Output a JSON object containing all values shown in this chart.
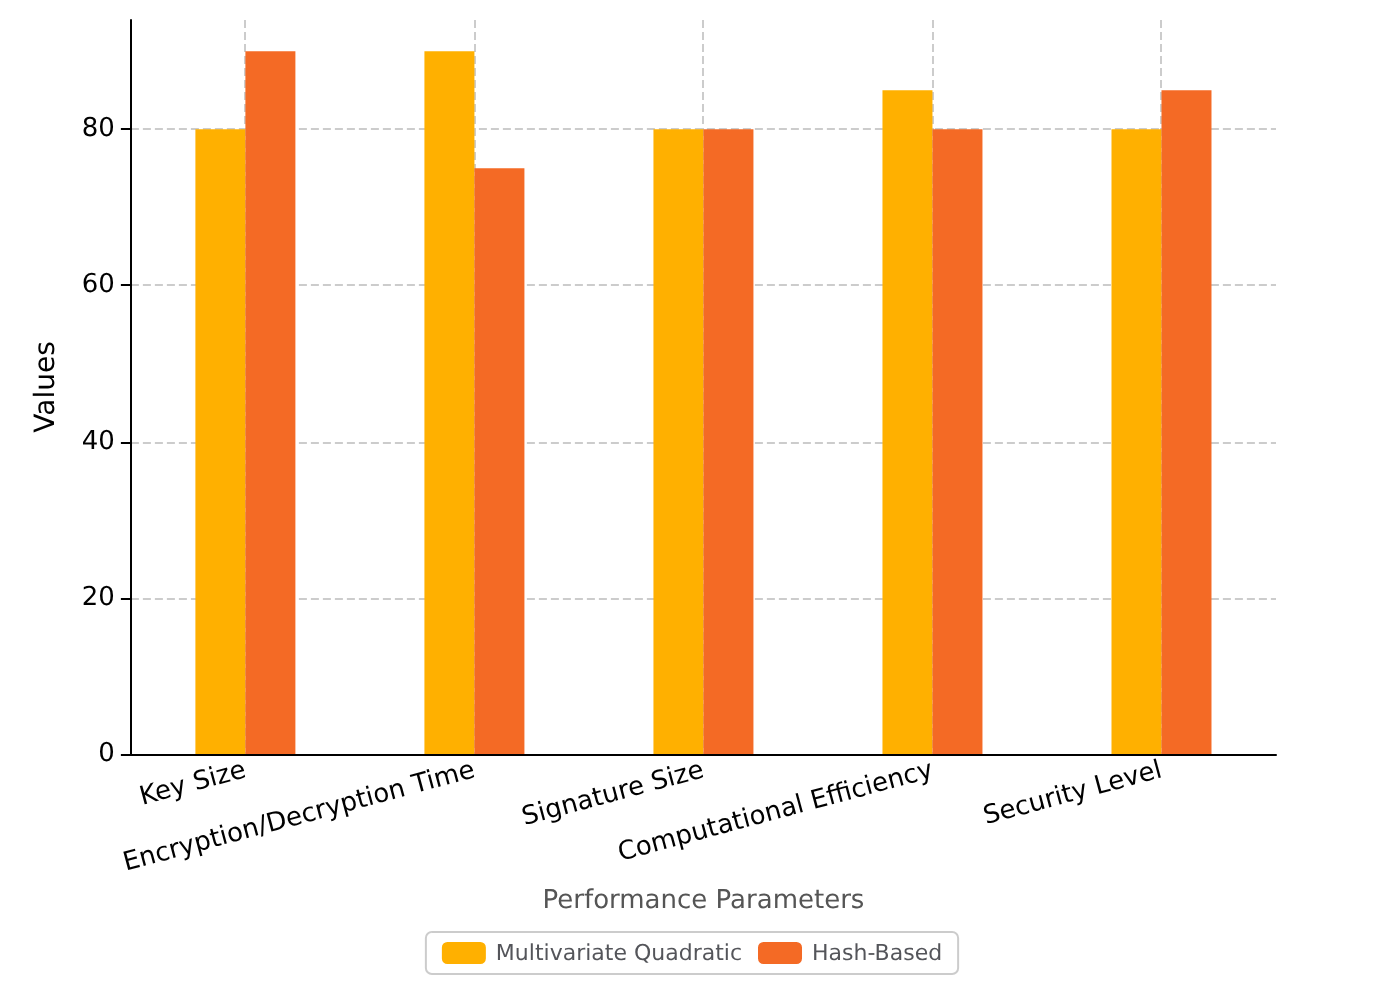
{
  "chart_data": {
    "type": "bar",
    "xlabel": "Performance Parameters",
    "ylabel": "Values",
    "categories": [
      "Key Size",
      "Encryption/Decryption Time",
      "Signature Size",
      "Computational Efficiency",
      "Security Level"
    ],
    "series": [
      {
        "name": "Multivariate Quadratic",
        "color": "#ffb000",
        "values": [
          80,
          90,
          80,
          85,
          80
        ]
      },
      {
        "name": "Hash-Based",
        "color": "#f46a25",
        "values": [
          90,
          75,
          80,
          80,
          85
        ]
      }
    ],
    "ylim": [
      0,
      94
    ],
    "yticks": [
      0,
      20,
      40,
      60,
      80
    ],
    "grid": true,
    "legend": "bottom"
  }
}
